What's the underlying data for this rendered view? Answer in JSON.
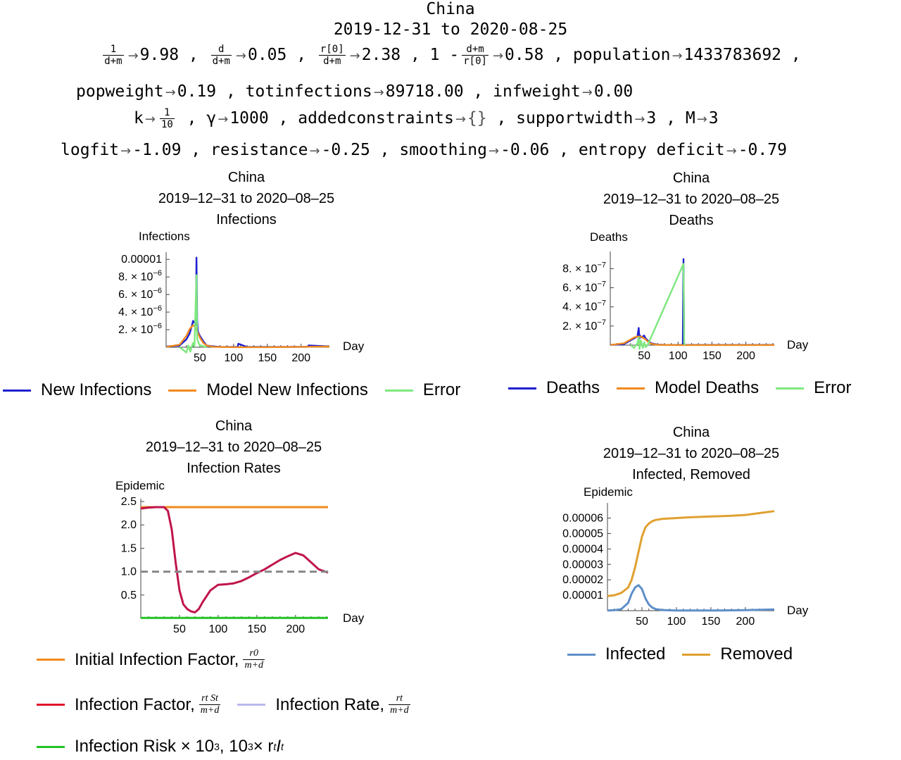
{
  "header": {
    "country": "China",
    "date_range": "2019-12-31 to 2020-08-25"
  },
  "params": {
    "line1": [
      {
        "frac_num": "1",
        "frac_den": "d+m",
        "value": "9.98"
      },
      {
        "frac_num": "d",
        "frac_den": "d+m",
        "value": "0.05"
      },
      {
        "frac_num": "r[0]",
        "frac_den": "d+m",
        "value": "2.38"
      },
      {
        "prefix": "1 -",
        "frac_num": "d+m",
        "frac_den": "r[0]",
        "value": "0.58"
      },
      {
        "name": "population",
        "value": "1433783692"
      }
    ],
    "line2": [
      {
        "name": "popweight",
        "value": "0.19"
      },
      {
        "name": "totinfections",
        "value": "89718.00"
      },
      {
        "name": "infweight",
        "value": "0.00"
      }
    ],
    "line3": [
      {
        "name": "k",
        "frac_num": "1",
        "frac_den": "10"
      },
      {
        "name": "γ",
        "value": "1000"
      },
      {
        "name": "addedconstraints",
        "value": "{}"
      },
      {
        "name": "supportwidth",
        "value": "3"
      },
      {
        "name": "M",
        "value": "3"
      }
    ],
    "line4": [
      {
        "name": "logfit",
        "value": "-1.09"
      },
      {
        "name": "resistance",
        "value": "-0.25"
      },
      {
        "name": "smoothing",
        "value": "-0.06"
      },
      {
        "name": "entropy deficit",
        "value": "-0.79"
      }
    ]
  },
  "chart_data": [
    {
      "type": "line",
      "title": [
        "China",
        "2019–12–31 to 2020–08–25",
        "Infections"
      ],
      "ylabel": "Infections",
      "xlabel": "Day",
      "xlim": [
        0,
        242
      ],
      "ylim": [
        0,
        1.05e-05
      ],
      "xticks": [
        "50",
        "100",
        "150",
        "200"
      ],
      "yticks": [
        "0.00001",
        "8. × 10^-6",
        "6. × 10^-6",
        "4. × 10^-6",
        "2. × 10^-6"
      ],
      "yticks_values": [
        1e-05,
        8e-06,
        6e-06,
        4e-06,
        2e-06
      ],
      "series": [
        {
          "name": "New Infections",
          "color": "#1f1fd1",
          "x": [
            1,
            20,
            30,
            35,
            38,
            40,
            42,
            44,
            45,
            46,
            47,
            50,
            55,
            60,
            70,
            80,
            100,
            106,
            107,
            120,
            150,
            200,
            210,
            211,
            242
          ],
          "y": [
            1e-07,
            2e-07,
            9e-07,
            1.6e-06,
            2.4e-06,
            3e-06,
            2.8e-06,
            2.5e-06,
            1.02e-05,
            3e-06,
            1.8e-06,
            1.3e-06,
            7e-07,
            2e-07,
            1e-07,
            5e-08,
            3e-08,
            3e-08,
            4e-07,
            3e-08,
            3e-08,
            5e-08,
            5e-08,
            2e-07,
            1e-07
          ]
        },
        {
          "name": "Model New Infections",
          "color": "#f08a1e",
          "x": [
            1,
            20,
            30,
            35,
            40,
            42,
            45,
            50,
            55,
            60,
            70,
            100,
            150,
            200,
            242
          ],
          "y": [
            5e-08,
            3e-07,
            1.3e-06,
            2.1e-06,
            2.5e-06,
            2.4e-06,
            2e-06,
            1.1e-06,
            5e-07,
            2e-07,
            5e-08,
            1e-08,
            1e-08,
            5e-08,
            8e-08
          ]
        },
        {
          "name": "Error",
          "color": "#7ee87e",
          "x": [
            20,
            25,
            30,
            33,
            36,
            38,
            40,
            42,
            45,
            46,
            47,
            50,
            53,
            56,
            60
          ],
          "y": [
            0,
            -3e-07,
            -6e-07,
            2e-07,
            -5e-07,
            1e-07,
            5e-07,
            1e-07,
            8.2e-06,
            1e-06,
            7e-07,
            2e-07,
            2e-07,
            1e-07,
            0
          ]
        }
      ]
    },
    {
      "type": "line",
      "title": [
        "China",
        "2019–12–31 to 2020–08–25",
        "Deaths"
      ],
      "ylabel": "Deaths",
      "xlabel": "Day",
      "xlim": [
        0,
        242
      ],
      "ylim": [
        0,
        9.5e-07
      ],
      "xticks": [
        "50",
        "100",
        "150",
        "200"
      ],
      "yticks": [
        "8. × 10^-7",
        "6. × 10^-7",
        "4. × 10^-7",
        "2. × 10^-7"
      ],
      "yticks_values": [
        8e-07,
        6e-07,
        4e-07,
        2e-07
      ],
      "series": [
        {
          "name": "Deaths",
          "color": "#1f1fd1",
          "x": [
            1,
            20,
            30,
            35,
            40,
            42,
            43,
            44,
            46,
            50,
            52,
            55,
            60,
            70,
            80,
            100,
            107,
            108,
            109,
            120,
            150,
            200,
            242
          ],
          "y": [
            2e-09,
            1e-08,
            5e-08,
            7e-08,
            9e-08,
            1.8e-07,
            7e-08,
            1e-07,
            8e-08,
            1e-07,
            7e-08,
            5e-08,
            2e-08,
            5e-09,
            3e-09,
            2e-09,
            2e-09,
            9e-07,
            2e-09,
            2e-09,
            2e-09,
            2e-09,
            2e-09
          ]
        },
        {
          "name": "Model Deaths",
          "color": "#f08a1e",
          "x": [
            1,
            20,
            30,
            35,
            40,
            45,
            50,
            55,
            60,
            70,
            100,
            242
          ],
          "y": [
            2e-09,
            2e-08,
            6e-08,
            8e-08,
            9e-08,
            9e-08,
            7e-08,
            4e-08,
            1.5e-08,
            3e-09,
            1e-09,
            1e-09
          ]
        },
        {
          "name": "Error",
          "color": "#7ee87e",
          "x": [
            30,
            35,
            40,
            42,
            43,
            45,
            48,
            50,
            52,
            55,
            108,
            109,
            110
          ],
          "y": [
            0,
            -3e-08,
            2e-08,
            8e-08,
            -4e-08,
            5e-08,
            -3e-08,
            3e-08,
            -2e-08,
            0,
            8.5e-07,
            2e-08,
            0
          ]
        }
      ]
    },
    {
      "type": "line",
      "title": [
        "China",
        "2019–12–31 to 2020–08–25",
        "Infection Rates"
      ],
      "ylabel": "Epidemic",
      "xlabel": "Day",
      "xlim": [
        0,
        242
      ],
      "ylim": [
        0,
        2.5
      ],
      "xticks": [
        "50",
        "100",
        "150",
        "200"
      ],
      "yticks": [
        "2.5",
        "2.0",
        "1.5",
        "1.0",
        "0.5"
      ],
      "yticks_values": [
        2.5,
        2.0,
        1.5,
        1.0,
        0.5
      ],
      "series": [
        {
          "name": "Initial Infection Factor",
          "color": "#f08a1e",
          "x": [
            0,
            242
          ],
          "y": [
            2.38,
            2.38
          ]
        },
        {
          "name": "Infection Factor",
          "color": "#c0144a",
          "x": [
            0,
            10,
            20,
            30,
            35,
            40,
            45,
            50,
            55,
            60,
            65,
            70,
            75,
            80,
            90,
            100,
            110,
            120,
            130,
            140,
            150,
            160,
            170,
            180,
            190,
            200,
            210,
            220,
            230,
            242
          ],
          "y": [
            2.35,
            2.37,
            2.38,
            2.38,
            2.3,
            1.9,
            1.2,
            0.6,
            0.3,
            0.2,
            0.15,
            0.13,
            0.2,
            0.35,
            0.6,
            0.72,
            0.73,
            0.75,
            0.8,
            0.88,
            0.97,
            1.05,
            1.15,
            1.25,
            1.33,
            1.4,
            1.35,
            1.2,
            1.05,
            0.98
          ]
        },
        {
          "name": "Infection Rate",
          "color": "#b9b9ee",
          "x": [],
          "y": []
        },
        {
          "name": "Infection Risk × 10^3",
          "color": "#22c322",
          "x": [
            0,
            242
          ],
          "y": [
            0.01,
            0.01
          ]
        },
        {
          "name": "threshold",
          "color": "#888888",
          "dashed": true,
          "x": [
            0,
            242
          ],
          "y": [
            1.0,
            1.0
          ]
        }
      ]
    },
    {
      "type": "line",
      "title": [
        "China",
        "2019–12–31 to 2020–08–25",
        "Infected, Removed"
      ],
      "ylabel": "Epidemic",
      "xlabel": "Day",
      "xlim": [
        0,
        242
      ],
      "ylim": [
        0,
        6.8e-05
      ],
      "xticks": [
        "50",
        "100",
        "150",
        "200"
      ],
      "yticks": [
        "0.00006",
        "0.00005",
        "0.00004",
        "0.00003",
        "0.00002",
        "0.00001"
      ],
      "yticks_values": [
        6e-05,
        5e-05,
        4e-05,
        3e-05,
        2e-05,
        1e-05
      ],
      "series": [
        {
          "name": "Infected",
          "color": "#5f8fc8",
          "x": [
            0,
            10,
            20,
            30,
            35,
            40,
            45,
            50,
            55,
            60,
            65,
            70,
            80,
            100,
            150,
            200,
            242
          ],
          "y": [
            1e-07,
            3e-07,
            1e-06,
            5e-06,
            1.1e-05,
            1.5e-05,
            1.65e-05,
            1.4e-05,
            8e-06,
            4e-06,
            2e-06,
            1e-06,
            4e-07,
            1e-07,
            1e-07,
            3e-07,
            8e-07
          ]
        },
        {
          "name": "Removed",
          "color": "#e0a030",
          "x": [
            0,
            10,
            20,
            30,
            35,
            40,
            45,
            50,
            55,
            60,
            65,
            70,
            80,
            100,
            120,
            150,
            180,
            200,
            220,
            242
          ],
          "y": [
            9.5e-06,
            1e-05,
            1.15e-05,
            1.5e-05,
            2e-05,
            2.8e-05,
            3.8e-05,
            4.8e-05,
            5.4e-05,
            5.65e-05,
            5.8e-05,
            5.88e-05,
            5.95e-05,
            6e-05,
            6.05e-05,
            6.1e-05,
            6.15e-05,
            6.2e-05,
            6.32e-05,
            6.45e-05
          ]
        }
      ]
    }
  ],
  "legends": {
    "infections": [
      "New Infections",
      "Model New Infections",
      "Error"
    ],
    "deaths": [
      "Deaths",
      "Model Deaths",
      "Error"
    ],
    "rates": {
      "initial_factor": "Initial Infection Factor,",
      "initial_frac_num": "r0",
      "initial_frac_den": "m+d",
      "factor": "Infection Factor,",
      "factor_frac_num": "rt St",
      "factor_frac_den": "m+d",
      "rate": "Infection Rate,",
      "rate_frac_num": "rt",
      "rate_frac_den": "m+d",
      "risk": "Infection Risk × 10",
      "risk_exp": "3",
      "risk_tail": ", 10",
      "risk_tail_exp": "3",
      "risk_formula": " × r",
      "risk_sub1": "t",
      "risk_formula2": "I",
      "risk_sub2": "t"
    },
    "infected_removed": [
      "Infected",
      "Removed"
    ]
  },
  "colors": {
    "blue": "#1f1fd1",
    "orange": "#f08a1e",
    "lightgreen": "#7ee87e",
    "crimson": "#c0144a",
    "lavender": "#b9b9ee",
    "green": "#22c322",
    "steel": "#5f8fc8",
    "gold": "#e0a030"
  }
}
